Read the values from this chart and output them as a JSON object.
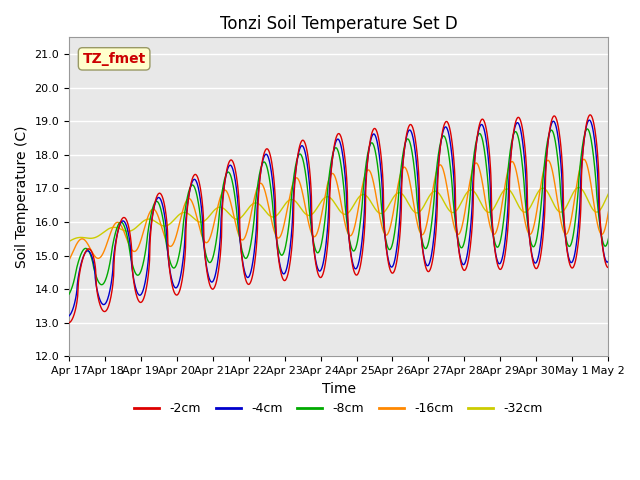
{
  "title": "Tonzi Soil Temperature Set D",
  "xlabel": "Time",
  "ylabel": "Soil Temperature (C)",
  "ylim": [
    12.0,
    21.5
  ],
  "annotation": "TZ_fmet",
  "legend": [
    "-2cm",
    "-4cm",
    "-8cm",
    "-16cm",
    "-32cm"
  ],
  "line_colors": [
    "#dd0000",
    "#0000cc",
    "#00aa00",
    "#ff8800",
    "#cccc00"
  ],
  "x_tick_labels": [
    "Apr 17",
    "Apr 18",
    "Apr 19",
    "Apr 20",
    "Apr 21",
    "Apr 22",
    "Apr 23",
    "Apr 24",
    "Apr 25",
    "Apr 26",
    "Apr 27",
    "Apr 28",
    "Apr 29",
    "Apr 30",
    "May 1",
    "May 2"
  ],
  "x_tick_positions": [
    0,
    1,
    2,
    3,
    4,
    5,
    6,
    7,
    8,
    9,
    10,
    11,
    12,
    13,
    14,
    15
  ],
  "title_fontsize": 12,
  "axis_label_fontsize": 10,
  "tick_fontsize": 8,
  "legend_fontsize": 9
}
